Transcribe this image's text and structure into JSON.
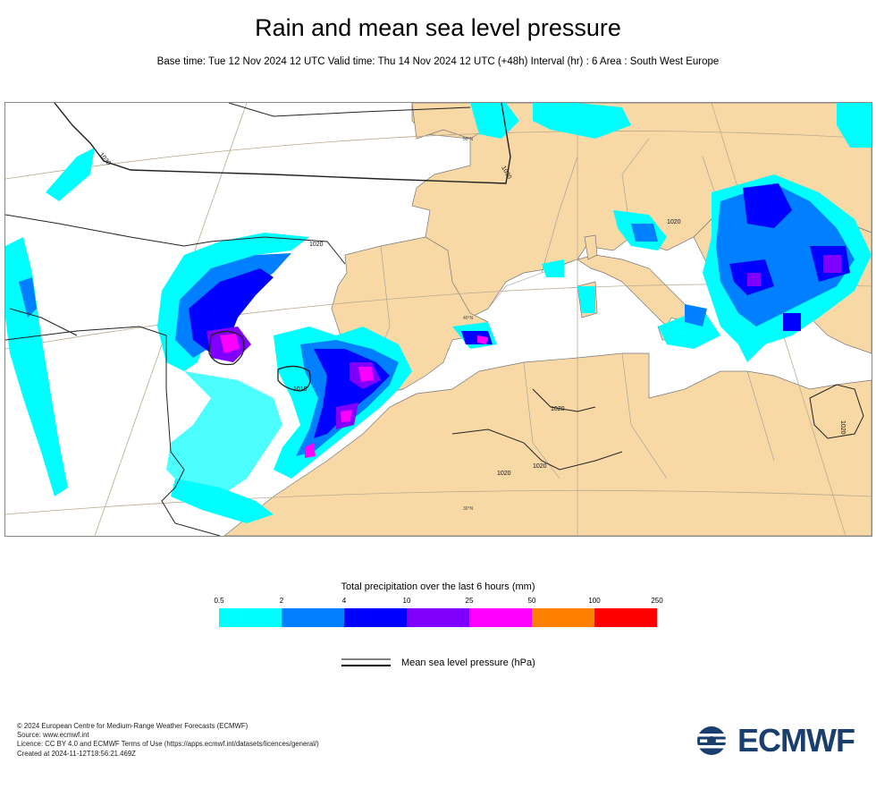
{
  "header": {
    "title": "Rain and mean sea level pressure",
    "subtitle": "Base time: Tue 12 Nov 2024 12 UTC Valid time: Thu 14 Nov 2024 12 UTC (+48h) Interval (hr) : 6 Area : South West Europe"
  },
  "map": {
    "land_color": "#f8d9a6",
    "sea_color": "#ffffff",
    "isobar_labels": [
      "1030",
      "1030",
      "1020",
      "1010",
      "1020",
      "1020",
      "1020",
      "1020",
      "1020"
    ],
    "graticule_labels": [
      "50°N",
      "40°N",
      "30°N"
    ]
  },
  "legend": {
    "title": "Total precipitation over the last 6 hours (mm)",
    "ticks": [
      "0.5",
      "2",
      "4",
      "10",
      "25",
      "50",
      "100",
      "250"
    ],
    "colors": [
      "#00fefe",
      "#0080fe",
      "#0000fe",
      "#8000fe",
      "#fe00fe",
      "#fe8000",
      "#fe0000"
    ],
    "pressure_label": "Mean sea level pressure (hPa)"
  },
  "footer": {
    "lines": [
      "© 2024 European Centre for Medium-Range Weather Forecasts (ECMWF)",
      "Source: www.ecmwf.int",
      "Licence: CC BY 4.0 and ECMWF Terms of Use (https://apps.ecmwf.int/datasets/licences/general/)",
      "Created at 2024-11-12T18:56:21.469Z"
    ],
    "logo_text": "ECMWF"
  }
}
